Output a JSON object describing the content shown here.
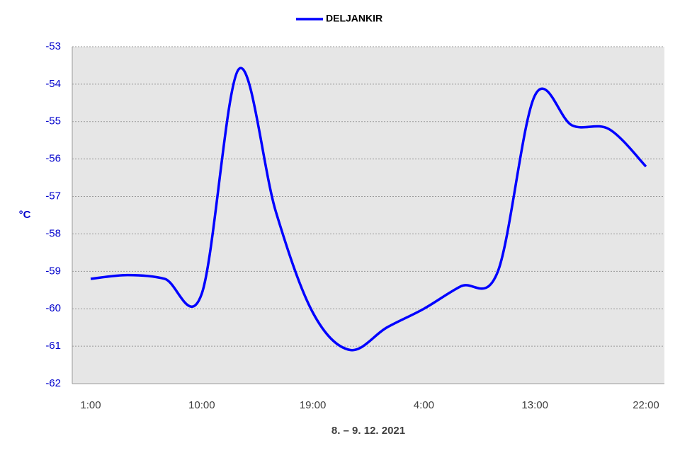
{
  "chart_data": {
    "type": "line",
    "x_label": "8. – 9. 12. 2021",
    "y_label": "°C",
    "categories": [
      "1:00",
      null,
      null,
      "10:00",
      null,
      null,
      "19:00",
      null,
      null,
      "4:00",
      null,
      null,
      "13:00",
      null,
      null,
      "22:00"
    ],
    "series": [
      {
        "name": "DELJANKIR",
        "color": "#0000ff",
        "values": [
          -59.2,
          -59.1,
          -59.2,
          -59.6,
          -53.6,
          -57.4,
          -60.1,
          -61.1,
          -60.5,
          -60.0,
          -59.4,
          -59.0,
          -54.3,
          -55.1,
          -55.2,
          -56.2
        ]
      }
    ],
    "ylim": [
      -62,
      -53
    ],
    "yticks": [
      -62,
      -61,
      -60,
      -59,
      -58,
      -57,
      -56,
      -55,
      -54,
      -53
    ],
    "grid": true,
    "legend": "top"
  }
}
